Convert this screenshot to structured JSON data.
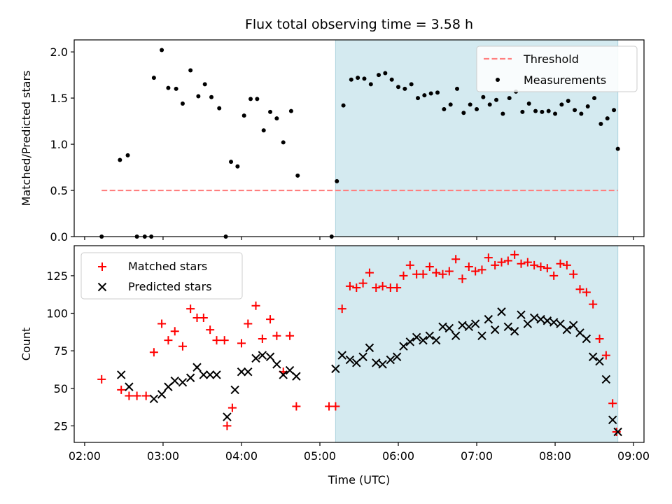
{
  "figure": {
    "title": "Flux total observing time = 3.58 h",
    "shade_color": "#d4eaf0",
    "shade_edge_color": "#aed4df"
  },
  "chart_data": [
    {
      "type": "scatter",
      "title": "Flux total observing time = 3.58 h",
      "xlabel": "",
      "ylabel": "Matched/Predicted stars",
      "xlim": [
        "01:52",
        "09:08"
      ],
      "ylim": [
        0,
        2.13
      ],
      "yticks": [
        0.0,
        0.5,
        1.0,
        1.5,
        2.0
      ],
      "ytick_labels": [
        "0.0",
        "0.5",
        "1.0",
        "1.5",
        "2.0"
      ],
      "xticks": [
        "02:00",
        "03:00",
        "04:00",
        "05:00",
        "06:00",
        "07:00",
        "08:00",
        "09:00"
      ],
      "shaded_region": [
        "05:12",
        "08:48"
      ],
      "legend_position": "top-right",
      "threshold": {
        "name": "Threshold",
        "value": 0.5,
        "x_range": [
          "02:13",
          "08:48"
        ],
        "color": "#ff7f7f",
        "style": "dashed"
      },
      "series": [
        {
          "name": "Measurements",
          "color": "#000000",
          "marker": "dot",
          "points": [
            [
              "02:13",
              0.0
            ],
            [
              "02:27",
              0.83
            ],
            [
              "02:33",
              0.88
            ],
            [
              "02:40",
              0.0
            ],
            [
              "02:46",
              0.0
            ],
            [
              "02:51",
              0.0
            ],
            [
              "02:53",
              1.72
            ],
            [
              "02:59",
              2.02
            ],
            [
              "03:04",
              1.61
            ],
            [
              "03:10",
              1.6
            ],
            [
              "03:15",
              1.44
            ],
            [
              "03:21",
              1.8
            ],
            [
              "03:27",
              1.52
            ],
            [
              "03:32",
              1.65
            ],
            [
              "03:37",
              1.51
            ],
            [
              "03:43",
              1.39
            ],
            [
              "03:48",
              0.0
            ],
            [
              "03:52",
              0.81
            ],
            [
              "03:57",
              0.76
            ],
            [
              "04:02",
              1.31
            ],
            [
              "04:07",
              1.49
            ],
            [
              "04:12",
              1.49
            ],
            [
              "04:17",
              1.15
            ],
            [
              "04:22",
              1.35
            ],
            [
              "04:27",
              1.28
            ],
            [
              "04:32",
              1.02
            ],
            [
              "04:38",
              1.36
            ],
            [
              "04:43",
              0.66
            ],
            [
              "05:09",
              0.0
            ],
            [
              "05:13",
              0.6
            ],
            [
              "05:18",
              1.42
            ],
            [
              "05:24",
              1.7
            ],
            [
              "05:29",
              1.72
            ],
            [
              "05:34",
              1.71
            ],
            [
              "05:39",
              1.65
            ],
            [
              "05:45",
              1.75
            ],
            [
              "05:50",
              1.77
            ],
            [
              "05:55",
              1.7
            ],
            [
              "06:00",
              1.62
            ],
            [
              "06:05",
              1.6
            ],
            [
              "06:10",
              1.65
            ],
            [
              "06:15",
              1.5
            ],
            [
              "06:20",
              1.53
            ],
            [
              "06:25",
              1.55
            ],
            [
              "06:30",
              1.56
            ],
            [
              "06:35",
              1.38
            ],
            [
              "06:40",
              1.43
            ],
            [
              "06:45",
              1.6
            ],
            [
              "06:50",
              1.34
            ],
            [
              "06:55",
              1.43
            ],
            [
              "07:00",
              1.38
            ],
            [
              "07:05",
              1.51
            ],
            [
              "07:10",
              1.43
            ],
            [
              "07:15",
              1.48
            ],
            [
              "07:20",
              1.33
            ],
            [
              "07:25",
              1.5
            ],
            [
              "07:30",
              1.57
            ],
            [
              "07:35",
              1.35
            ],
            [
              "07:40",
              1.44
            ],
            [
              "07:45",
              1.36
            ],
            [
              "07:50",
              1.35
            ],
            [
              "07:55",
              1.36
            ],
            [
              "08:00",
              1.33
            ],
            [
              "08:05",
              1.43
            ],
            [
              "08:10",
              1.47
            ],
            [
              "08:15",
              1.37
            ],
            [
              "08:20",
              1.33
            ],
            [
              "08:25",
              1.41
            ],
            [
              "08:30",
              1.5
            ],
            [
              "08:35",
              1.22
            ],
            [
              "08:40",
              1.28
            ],
            [
              "08:45",
              1.37
            ],
            [
              "08:48",
              0.95
            ]
          ]
        }
      ]
    },
    {
      "type": "scatter",
      "xlabel": "Time (UTC)",
      "ylabel": "Count",
      "xlim": [
        "01:52",
        "09:08"
      ],
      "ylim": [
        14,
        145
      ],
      "yticks": [
        25,
        50,
        75,
        100,
        125
      ],
      "ytick_labels": [
        "25",
        "50",
        "75",
        "100",
        "125"
      ],
      "xticks": [
        "02:00",
        "03:00",
        "04:00",
        "05:00",
        "06:00",
        "07:00",
        "08:00",
        "09:00"
      ],
      "xtick_labels": [
        "02:00",
        "03:00",
        "04:00",
        "05:00",
        "06:00",
        "07:00",
        "08:00",
        "09:00"
      ],
      "shaded_region": [
        "05:12",
        "08:48"
      ],
      "legend_position": "top-left",
      "series": [
        {
          "name": "Matched stars",
          "color": "#ff0000",
          "marker": "plus",
          "points": [
            [
              "02:13",
              56
            ],
            [
              "02:28",
              49
            ],
            [
              "02:34",
              45
            ],
            [
              "02:40",
              45
            ],
            [
              "02:47",
              45
            ],
            [
              "02:53",
              74
            ],
            [
              "02:59",
              93
            ],
            [
              "03:04",
              82
            ],
            [
              "03:09",
              88
            ],
            [
              "03:15",
              78
            ],
            [
              "03:21",
              103
            ],
            [
              "03:26",
              97
            ],
            [
              "03:31",
              97
            ],
            [
              "03:36",
              89
            ],
            [
              "03:41",
              82
            ],
            [
              "03:47",
              82
            ],
            [
              "03:49",
              25
            ],
            [
              "03:53",
              37
            ],
            [
              "04:00",
              80
            ],
            [
              "04:05",
              93
            ],
            [
              "04:11",
              105
            ],
            [
              "04:16",
              83
            ],
            [
              "04:22",
              96
            ],
            [
              "04:27",
              85
            ],
            [
              "04:32",
              61
            ],
            [
              "04:37",
              85
            ],
            [
              "04:42",
              38
            ],
            [
              "05:07",
              38
            ],
            [
              "05:12",
              38
            ],
            [
              "05:17",
              103
            ],
            [
              "05:23",
              118
            ],
            [
              "05:28",
              117
            ],
            [
              "05:33",
              120
            ],
            [
              "05:38",
              127
            ],
            [
              "05:43",
              117
            ],
            [
              "05:48",
              118
            ],
            [
              "05:54",
              117
            ],
            [
              "05:59",
              117
            ],
            [
              "06:04",
              125
            ],
            [
              "06:09",
              132
            ],
            [
              "06:14",
              126
            ],
            [
              "06:19",
              126
            ],
            [
              "06:24",
              131
            ],
            [
              "06:29",
              127
            ],
            [
              "06:34",
              126
            ],
            [
              "06:39",
              128
            ],
            [
              "06:44",
              136
            ],
            [
              "06:49",
              123
            ],
            [
              "06:54",
              131
            ],
            [
              "06:59",
              128
            ],
            [
              "07:04",
              129
            ],
            [
              "07:09",
              137
            ],
            [
              "07:14",
              132
            ],
            [
              "07:19",
              134
            ],
            [
              "07:24",
              135
            ],
            [
              "07:29",
              139
            ],
            [
              "07:34",
              133
            ],
            [
              "07:39",
              134
            ],
            [
              "07:44",
              132
            ],
            [
              "07:49",
              131
            ],
            [
              "07:54",
              130
            ],
            [
              "07:59",
              125
            ],
            [
              "08:04",
              133
            ],
            [
              "08:09",
              132
            ],
            [
              "08:14",
              126
            ],
            [
              "08:19",
              116
            ],
            [
              "08:24",
              114
            ],
            [
              "08:29",
              106
            ],
            [
              "08:34",
              83
            ],
            [
              "08:39",
              72
            ],
            [
              "08:44",
              40
            ],
            [
              "08:47",
              21
            ]
          ]
        },
        {
          "name": "Predicted stars",
          "color": "#000000",
          "marker": "x",
          "points": [
            [
              "02:28",
              59
            ],
            [
              "02:34",
              51
            ],
            [
              "02:53",
              43
            ],
            [
              "02:59",
              46
            ],
            [
              "03:04",
              51
            ],
            [
              "03:09",
              55
            ],
            [
              "03:15",
              54
            ],
            [
              "03:21",
              57
            ],
            [
              "03:26",
              64
            ],
            [
              "03:31",
              59
            ],
            [
              "03:36",
              59
            ],
            [
              "03:41",
              59
            ],
            [
              "03:49",
              31
            ],
            [
              "03:55",
              49
            ],
            [
              "04:00",
              61
            ],
            [
              "04:05",
              61
            ],
            [
              "04:11",
              70
            ],
            [
              "04:16",
              72
            ],
            [
              "04:22",
              71
            ],
            [
              "04:27",
              66
            ],
            [
              "04:32",
              59
            ],
            [
              "04:37",
              62
            ],
            [
              "04:42",
              58
            ],
            [
              "05:12",
              63
            ],
            [
              "05:17",
              72
            ],
            [
              "05:23",
              69
            ],
            [
              "05:28",
              67
            ],
            [
              "05:33",
              71
            ],
            [
              "05:38",
              77
            ],
            [
              "05:43",
              67
            ],
            [
              "05:48",
              66
            ],
            [
              "05:54",
              69
            ],
            [
              "05:59",
              71
            ],
            [
              "06:04",
              78
            ],
            [
              "06:09",
              81
            ],
            [
              "06:14",
              84
            ],
            [
              "06:19",
              82
            ],
            [
              "06:24",
              85
            ],
            [
              "06:29",
              82
            ],
            [
              "06:34",
              91
            ],
            [
              "06:39",
              90
            ],
            [
              "06:44",
              85
            ],
            [
              "06:49",
              92
            ],
            [
              "06:54",
              91
            ],
            [
              "06:59",
              93
            ],
            [
              "07:04",
              85
            ],
            [
              "07:09",
              96
            ],
            [
              "07:14",
              89
            ],
            [
              "07:19",
              101
            ],
            [
              "07:24",
              91
            ],
            [
              "07:29",
              88
            ],
            [
              "07:34",
              99
            ],
            [
              "07:39",
              93
            ],
            [
              "07:44",
              97
            ],
            [
              "07:49",
              96
            ],
            [
              "07:54",
              95
            ],
            [
              "07:59",
              94
            ],
            [
              "08:04",
              93
            ],
            [
              "08:09",
              89
            ],
            [
              "08:14",
              92
            ],
            [
              "08:19",
              87
            ],
            [
              "08:24",
              83
            ],
            [
              "08:29",
              71
            ],
            [
              "08:34",
              68
            ],
            [
              "08:39",
              56
            ],
            [
              "08:44",
              29
            ],
            [
              "08:48",
              21
            ]
          ]
        }
      ]
    }
  ]
}
